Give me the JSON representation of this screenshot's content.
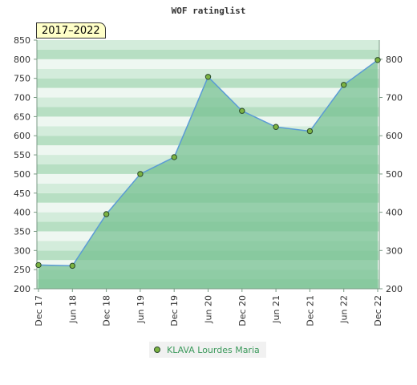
{
  "chart_data": {
    "type": "area",
    "title": "WOF ratinglist",
    "period_label": "2017–2022",
    "categories": [
      "Dec 17",
      "Jun 18",
      "Dec 18",
      "Jun 19",
      "Dec 19",
      "Jun 20",
      "Dec 20",
      "Jun 21",
      "Dec 21",
      "Jun 22",
      "Dec 22"
    ],
    "series": [
      {
        "name": "KLAVA Lourdes Maria",
        "values": [
          262,
          260,
          395,
          500,
          544,
          754,
          665,
          623,
          612,
          733,
          798
        ]
      }
    ],
    "y_left": {
      "min": 200,
      "max": 850,
      "ticks": [
        200,
        250,
        300,
        350,
        400,
        450,
        500,
        550,
        600,
        650,
        700,
        750,
        800,
        850
      ]
    },
    "y_right": {
      "min": 200,
      "max": 850,
      "ticks": [
        200,
        300,
        400,
        500,
        600,
        700,
        800
      ]
    },
    "grid": "horizontal bands",
    "legend_position": "bottom",
    "colors": {
      "area_fill": "#78c193",
      "line": "#5b9bd5",
      "marker": "#7cb342",
      "marker_stroke": "#2a4a2a",
      "band_light": "#eef7f1",
      "band_mid": "#d3ecdb",
      "band_dark": "#b7dfc3",
      "legend_text": "#3c9a5c"
    }
  }
}
